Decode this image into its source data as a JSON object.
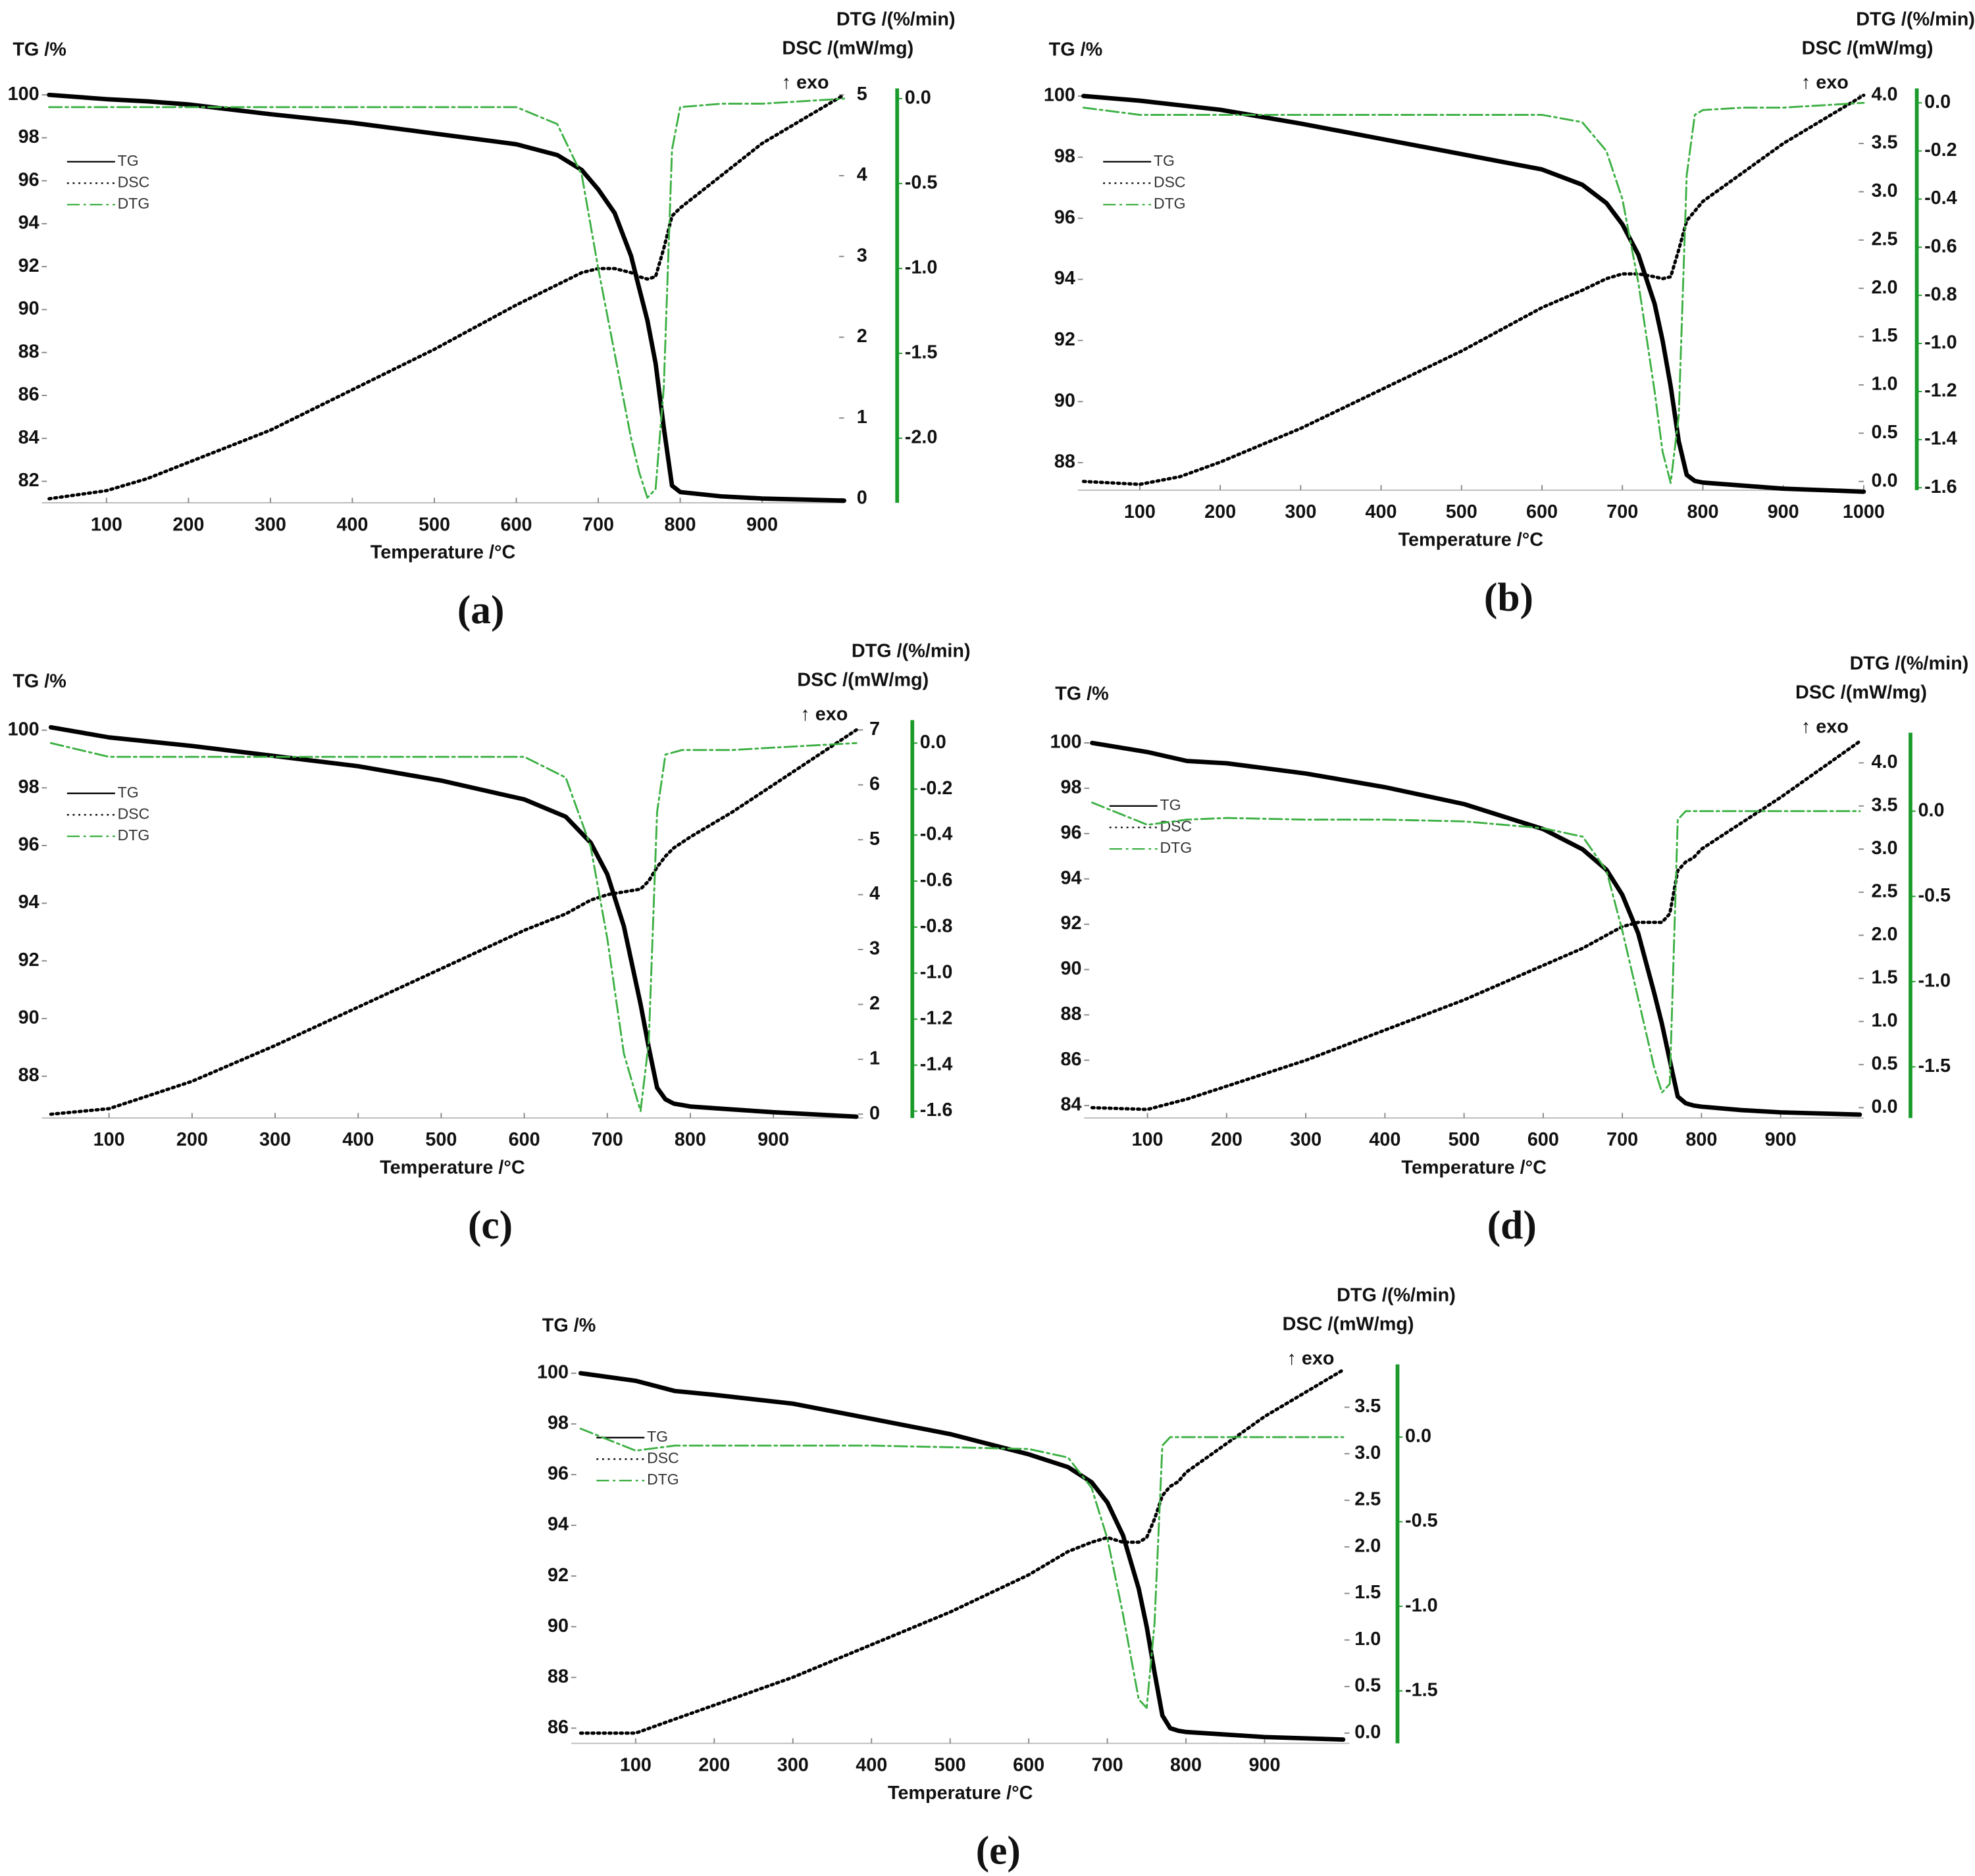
{
  "chart_data": [
    {
      "type": "line",
      "title": "(a)",
      "x_label": "Temperature /°C",
      "y_label": "TG /%",
      "y2_label": "DSC /(mW/mg)",
      "y3_label": "DTG /(%/min)",
      "annotation": "↑ exo",
      "x": [
        30,
        100,
        150,
        200,
        300,
        400,
        500,
        600,
        650,
        680,
        700,
        720,
        740,
        750,
        760,
        770,
        780,
        790,
        800,
        850,
        900,
        1000
      ],
      "xlim": [
        21,
        1000
      ],
      "xticks": [
        100,
        200,
        300,
        400,
        500,
        600,
        700,
        800,
        900
      ],
      "ylim": [
        81,
        100.3
      ],
      "yticks": [
        82,
        84,
        86,
        88,
        90,
        92,
        94,
        96,
        98,
        100
      ],
      "y2lim": [
        -0.05,
        5.08
      ],
      "y2ticks": [
        0,
        1,
        2,
        3,
        4,
        5
      ],
      "y3lim": [
        -2.38,
        0.06
      ],
      "y3ticks": [
        {
          "value": 0,
          "label": "0.0"
        },
        -0.5,
        {
          "value": -1,
          "label": "-1.0"
        },
        -1.5,
        {
          "value": -2,
          "label": "-2.0"
        }
      ],
      "series": [
        {
          "name": "TG",
          "axis": "y",
          "color": "#000000",
          "style": "solid",
          "values": [
            100.0,
            99.8,
            99.7,
            99.55,
            99.1,
            98.7,
            98.2,
            97.7,
            97.2,
            96.5,
            95.6,
            94.5,
            92.5,
            91.0,
            89.5,
            87.5,
            84.5,
            81.8,
            81.5,
            81.3,
            81.2,
            81.1
          ]
        },
        {
          "name": "DSC",
          "axis": "y2",
          "color": "#000000",
          "style": "dotted",
          "values": [
            0.0,
            0.1,
            0.25,
            0.45,
            0.85,
            1.35,
            1.85,
            2.4,
            2.65,
            2.8,
            2.85,
            2.85,
            2.8,
            2.75,
            2.72,
            2.75,
            3.1,
            3.5,
            3.6,
            4.0,
            4.4,
            5.0
          ]
        },
        {
          "name": "DTG",
          "axis": "y3",
          "color": "#3cb043",
          "style": "dash-dot",
          "values": [
            -0.05,
            -0.05,
            -0.05,
            -0.05,
            -0.05,
            -0.05,
            -0.05,
            -0.05,
            -0.15,
            -0.45,
            -1.0,
            -1.5,
            -2.0,
            -2.2,
            -2.35,
            -2.3,
            -1.7,
            -0.3,
            -0.05,
            -0.03,
            -0.03,
            0.0
          ]
        }
      ]
    },
    {
      "type": "line",
      "title": "(b)",
      "x_label": "Temperature /°C",
      "y_label": "TG /%",
      "y2_label": "DSC /(mW/mg)",
      "y3_label": "DTG /(%/min)",
      "annotation": "↑ exo",
      "x": [
        30,
        100,
        150,
        200,
        300,
        400,
        500,
        600,
        650,
        680,
        700,
        720,
        740,
        750,
        760,
        770,
        780,
        790,
        800,
        850,
        900,
        1000
      ],
      "xlim": [
        23,
        1000
      ],
      "xticks": [
        100,
        200,
        300,
        400,
        500,
        600,
        700,
        800,
        900,
        1000
      ],
      "ylim": [
        87.1,
        100.25
      ],
      "yticks": [
        88,
        90,
        92,
        94,
        96,
        98,
        100
      ],
      "y2lim": [
        -0.09,
        4.07
      ],
      "y2ticks": [
        {
          "value": 0,
          "label": "0.0"
        },
        0.5,
        {
          "value": 1,
          "label": "1.0"
        },
        1.5,
        {
          "value": 2,
          "label": "2.0"
        },
        2.5,
        {
          "value": 3,
          "label": "3.0"
        },
        3.5,
        {
          "value": 4,
          "label": "4.0"
        }
      ],
      "y3lim": [
        -1.61,
        0.06
      ],
      "y3ticks": [
        {
          "value": 0,
          "label": "0.0"
        },
        -0.2,
        -0.4,
        -0.6,
        -0.8,
        {
          "value": -1,
          "label": "-1.0"
        },
        -1.2,
        -1.4,
        -1.6
      ],
      "series": [
        {
          "name": "TG",
          "axis": "y",
          "color": "#000000",
          "style": "solid",
          "values": [
            100.0,
            99.85,
            99.7,
            99.55,
            99.1,
            98.6,
            98.1,
            97.6,
            97.1,
            96.5,
            95.8,
            94.8,
            93.2,
            92.0,
            90.5,
            88.7,
            87.6,
            87.4,
            87.35,
            87.25,
            87.15,
            87.05
          ]
        },
        {
          "name": "DSC",
          "axis": "y2",
          "color": "#000000",
          "style": "dotted",
          "values": [
            0.0,
            -0.03,
            0.05,
            0.2,
            0.55,
            0.95,
            1.35,
            1.8,
            1.98,
            2.1,
            2.15,
            2.15,
            2.12,
            2.1,
            2.12,
            2.4,
            2.7,
            2.8,
            2.9,
            3.2,
            3.5,
            4.0
          ]
        },
        {
          "name": "DTG",
          "axis": "y3",
          "color": "#3cb043",
          "style": "dash-dot",
          "values": [
            -0.02,
            -0.05,
            -0.05,
            -0.05,
            -0.05,
            -0.05,
            -0.05,
            -0.05,
            -0.08,
            -0.2,
            -0.4,
            -0.75,
            -1.2,
            -1.45,
            -1.58,
            -1.3,
            -0.3,
            -0.05,
            -0.03,
            -0.02,
            -0.02,
            0.0
          ]
        }
      ]
    },
    {
      "type": "line",
      "title": "(c)",
      "x_label": "Temperature /°C",
      "y_label": "TG /%",
      "y2_label": "DSC /(mW/mg)",
      "y3_label": "DTG /(%/min)",
      "annotation": "↑ exo",
      "x": [
        30,
        100,
        150,
        200,
        300,
        400,
        500,
        600,
        650,
        680,
        700,
        720,
        740,
        750,
        760,
        770,
        780,
        790,
        800,
        850,
        900,
        1000
      ],
      "xlim": [
        19,
        1008
      ],
      "xticks": [
        100,
        200,
        300,
        400,
        500,
        600,
        700,
        800,
        900
      ],
      "ylim": [
        86.55,
        100.35
      ],
      "yticks": [
        88,
        90,
        92,
        94,
        96,
        98,
        100
      ],
      "y2lim": [
        -0.07,
        7.18
      ],
      "y2ticks": [
        0,
        1,
        2,
        3,
        4,
        5,
        6,
        7
      ],
      "y3lim": [
        -1.63,
        0.1
      ],
      "y3ticks": [
        {
          "value": 0,
          "label": "0.0"
        },
        -0.2,
        -0.4,
        -0.6,
        -0.8,
        {
          "value": -1,
          "label": "-1.0"
        },
        -1.2,
        -1.4,
        -1.6
      ],
      "series": [
        {
          "name": "TG",
          "axis": "y",
          "color": "#000000",
          "style": "solid",
          "values": [
            100.1,
            99.75,
            99.6,
            99.45,
            99.1,
            98.75,
            98.25,
            97.6,
            97.0,
            96.1,
            95.0,
            93.2,
            90.5,
            89.0,
            87.6,
            87.2,
            87.05,
            87.0,
            86.95,
            86.85,
            86.75,
            86.6
          ]
        },
        {
          "name": "DSC",
          "axis": "y2",
          "color": "#000000",
          "style": "dotted",
          "values": [
            0.0,
            0.1,
            0.35,
            0.6,
            1.25,
            1.95,
            2.65,
            3.35,
            3.65,
            3.9,
            4.0,
            4.05,
            4.1,
            4.25,
            4.5,
            4.7,
            4.85,
            4.95,
            5.05,
            5.5,
            6.0,
            7.0
          ]
        },
        {
          "name": "DTG",
          "axis": "y3",
          "color": "#3cb043",
          "style": "dash-dot",
          "values": [
            0.0,
            -0.06,
            -0.06,
            -0.06,
            -0.06,
            -0.06,
            -0.06,
            -0.06,
            -0.15,
            -0.45,
            -0.85,
            -1.35,
            -1.6,
            -1.3,
            -0.3,
            -0.05,
            -0.04,
            -0.03,
            -0.03,
            -0.03,
            -0.02,
            0.0
          ]
        }
      ]
    },
    {
      "type": "line",
      "title": "(d)",
      "x_label": "Temperature /°C",
      "y_label": "TG /%",
      "y2_label": "DSC /(mW/mg)",
      "y3_label": "DTG /(%/min)",
      "annotation": "↑ exo",
      "x": [
        30,
        100,
        150,
        200,
        300,
        400,
        500,
        600,
        650,
        680,
        700,
        720,
        740,
        750,
        760,
        770,
        780,
        790,
        800,
        850,
        900,
        1000
      ],
      "xlim": [
        20,
        1005
      ],
      "xticks": [
        100,
        200,
        300,
        400,
        500,
        600,
        700,
        800,
        900
      ],
      "ylim": [
        83.45,
        100.45
      ],
      "yticks": [
        84,
        86,
        88,
        90,
        92,
        94,
        96,
        98,
        100
      ],
      "y2lim": [
        -0.12,
        4.35
      ],
      "y2ticks": [
        {
          "value": 0,
          "label": "0.0"
        },
        0.5,
        {
          "value": 1,
          "label": "1.0"
        },
        1.5,
        {
          "value": 2,
          "label": "2.0"
        },
        2.5,
        {
          "value": 3,
          "label": "3.0"
        },
        3.5,
        {
          "value": 4,
          "label": "4.0"
        }
      ],
      "y3lim": [
        -1.8,
        0.46
      ],
      "y3ticks": [
        {
          "value": 0,
          "label": "0.0"
        },
        -0.5,
        {
          "value": -1,
          "label": "-1.0"
        },
        -1.5
      ],
      "series": [
        {
          "name": "TG",
          "axis": "y",
          "color": "#000000",
          "style": "solid",
          "values": [
            100.0,
            99.6,
            99.2,
            99.1,
            98.65,
            98.05,
            97.3,
            96.2,
            95.3,
            94.4,
            93.3,
            91.6,
            89.0,
            87.6,
            86.0,
            84.4,
            84.1,
            84.0,
            83.95,
            83.8,
            83.7,
            83.6
          ]
        },
        {
          "name": "DSC",
          "axis": "y2",
          "color": "#000000",
          "style": "dotted",
          "values": [
            0.0,
            -0.02,
            0.1,
            0.25,
            0.55,
            0.9,
            1.25,
            1.65,
            1.85,
            2.0,
            2.1,
            2.15,
            2.15,
            2.15,
            2.25,
            2.75,
            2.85,
            2.9,
            3.0,
            3.3,
            3.6,
            4.25
          ]
        },
        {
          "name": "DTG",
          "axis": "y3",
          "color": "#3cb043",
          "style": "dash-dot",
          "values": [
            0.05,
            -0.08,
            -0.05,
            -0.04,
            -0.05,
            -0.05,
            -0.06,
            -0.1,
            -0.15,
            -0.35,
            -0.7,
            -1.1,
            -1.5,
            -1.65,
            -1.6,
            -0.05,
            0.0,
            0.0,
            0.0,
            0.0,
            0.0,
            0.0
          ]
        }
      ]
    },
    {
      "type": "line",
      "title": "(e)",
      "x_label": "Temperature /°C",
      "y_label": "TG /%",
      "y2_label": "DSC /(mW/mg)",
      "y3_label": "DTG /(%/min)",
      "annotation": "↑ exo",
      "x": [
        30,
        100,
        150,
        200,
        300,
        400,
        500,
        600,
        650,
        680,
        700,
        720,
        740,
        750,
        760,
        770,
        780,
        790,
        800,
        850,
        900,
        1000
      ],
      "xlim": [
        18,
        1008
      ],
      "xticks": [
        100,
        200,
        300,
        400,
        500,
        600,
        700,
        800,
        900
      ],
      "ylim": [
        85.4,
        100.35
      ],
      "yticks": [
        86,
        88,
        90,
        92,
        94,
        96,
        98,
        100
      ],
      "y2lim": [
        -0.11,
        3.96
      ],
      "y2ticks": [
        {
          "value": 0,
          "label": "0.0"
        },
        0.5,
        {
          "value": 1,
          "label": "1.0"
        },
        1.5,
        {
          "value": 2,
          "label": "2.0"
        },
        2.5,
        {
          "value": 3,
          "label": "3.0"
        },
        3.5
      ],
      "y3lim": [
        -1.81,
        0.43
      ],
      "y3ticks": [
        {
          "value": 0,
          "label": "0.0"
        },
        -0.5,
        {
          "value": -1,
          "label": "-1.0"
        },
        -1.5
      ],
      "series": [
        {
          "name": "TG",
          "axis": "y",
          "color": "#000000",
          "style": "solid",
          "values": [
            100.0,
            99.7,
            99.3,
            99.15,
            98.8,
            98.2,
            97.6,
            96.8,
            96.3,
            95.7,
            94.9,
            93.6,
            91.5,
            90.0,
            88.2,
            86.5,
            86.0,
            85.9,
            85.85,
            85.75,
            85.65,
            85.55
          ]
        },
        {
          "name": "DSC",
          "axis": "y2",
          "color": "#000000",
          "style": "dotted",
          "values": [
            0.0,
            0.0,
            0.15,
            0.3,
            0.6,
            0.95,
            1.3,
            1.7,
            1.95,
            2.05,
            2.1,
            2.05,
            2.05,
            2.1,
            2.3,
            2.55,
            2.65,
            2.7,
            2.8,
            3.1,
            3.4,
            3.9
          ]
        },
        {
          "name": "DTG",
          "axis": "y3",
          "color": "#3cb043",
          "style": "dash-dot",
          "values": [
            0.05,
            -0.08,
            -0.05,
            -0.05,
            -0.05,
            -0.05,
            -0.06,
            -0.07,
            -0.12,
            -0.3,
            -0.6,
            -1.05,
            -1.55,
            -1.6,
            -1.1,
            -0.05,
            0.0,
            0.0,
            0.0,
            0.0,
            0.0,
            0.0
          ]
        }
      ]
    }
  ]
}
